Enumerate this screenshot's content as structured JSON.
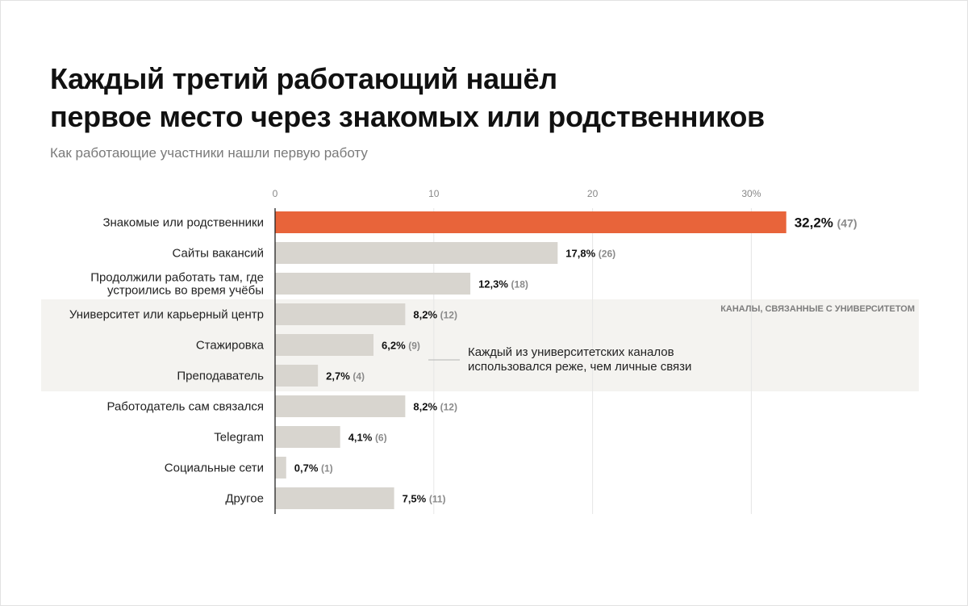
{
  "title_line1": "Каждый третий работающий нашёл",
  "title_line2": "первое место через знакомых или родственников",
  "subtitle": "Как работающие участники нашли первую работу",
  "colors": {
    "highlight": "#e8643a",
    "bar": "#d8d5cf",
    "band": "#f4f3f0",
    "grid": "#e6e6e6",
    "axis": "#222222"
  },
  "chart_data": {
    "type": "bar",
    "orientation": "horizontal",
    "xlim": [
      0,
      32.2
    ],
    "xticks": [
      0,
      10,
      20,
      30
    ],
    "xtick_labels": [
      "0",
      "10",
      "20",
      "30%"
    ],
    "grid": true,
    "categories": [
      [
        "Знакомые или родственники"
      ],
      [
        "Сайты вакансий"
      ],
      [
        "Продолжили работать там, где",
        "устроились во время учёбы"
      ],
      [
        "Университет или карьерный центр"
      ],
      [
        "Стажировка"
      ],
      [
        "Преподаватель"
      ],
      [
        "Работодатель сам связался"
      ],
      [
        "Telegram"
      ],
      [
        "Социальные сети"
      ],
      [
        "Другое"
      ]
    ],
    "values": [
      32.2,
      17.8,
      12.3,
      8.2,
      6.2,
      2.7,
      8.2,
      4.1,
      0.7,
      7.5
    ],
    "value_labels": [
      "32,2%",
      "17,8%",
      "12,3%",
      "8,2%",
      "6,2%",
      "2,7%",
      "8,2%",
      "4,1%",
      "0,7%",
      "7,5%"
    ],
    "counts": [
      "(47)",
      "(26)",
      "(18)",
      "(12)",
      "(9)",
      "(4)",
      "(12)",
      "(6)",
      "(1)",
      "(11)"
    ],
    "highlight_index": 0,
    "band": {
      "label": "КАНАЛЫ, СВЯЗАННЫЕ С УНИВЕРСИТЕТОМ",
      "from_index": 3,
      "to_index": 5
    },
    "annotation": {
      "lines": [
        "Каждый из университетских каналов",
        "использовался реже, чем личные связи"
      ]
    }
  }
}
